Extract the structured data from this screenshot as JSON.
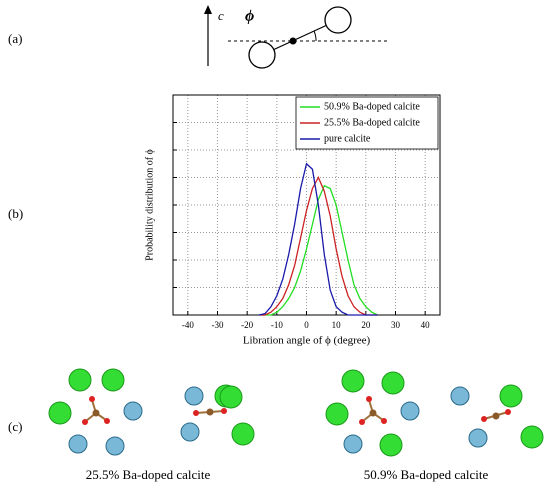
{
  "panel_labels": [
    "(a)",
    "(b)",
    "(c)"
  ],
  "diagram": {
    "axis_label": "c",
    "angle_label": "ϕ"
  },
  "chart_data": {
    "type": "line",
    "x_label": "Libration angle of ϕ (degree)",
    "y_label": "Probability distribution of ϕ",
    "x": [
      -16,
      -14,
      -12,
      -10,
      -8,
      -6,
      -4,
      -2,
      0,
      2,
      4,
      6,
      8,
      10,
      12,
      14,
      16,
      18,
      20,
      22,
      24
    ],
    "series": [
      {
        "name": "50.9% Ba-doped calcite",
        "color": "#22dd22",
        "values": [
          0,
          0,
          0,
          0.1,
          0.3,
          0.6,
          1.0,
          1.6,
          2.4,
          3.3,
          4.2,
          4.7,
          4.6,
          4.0,
          3.0,
          2.0,
          1.1,
          0.6,
          0.3,
          0.1,
          0
        ]
      },
      {
        "name": "25.5% Ba-doped calcite",
        "color": "#cc2222",
        "values": [
          0,
          0,
          0.1,
          0.3,
          0.6,
          1.1,
          1.8,
          2.8,
          3.8,
          4.6,
          5.0,
          4.5,
          3.6,
          2.4,
          1.4,
          0.7,
          0.3,
          0.1,
          0,
          0,
          0
        ]
      },
      {
        "name": "pure calcite",
        "color": "#1a1aaa",
        "values": [
          0,
          0.05,
          0.3,
          0.7,
          1.3,
          2.2,
          3.3,
          4.6,
          5.5,
          5.3,
          4.0,
          2.2,
          0.9,
          0.3,
          0.1,
          0,
          0,
          0,
          0,
          0,
          0
        ]
      }
    ],
    "xlim": [
      -45,
      45
    ],
    "xticks": [
      -40,
      -30,
      -20,
      -10,
      0,
      10,
      20,
      30,
      40
    ],
    "ylim": [
      0,
      8
    ],
    "yticks": [
      1,
      2,
      3,
      4,
      5,
      6,
      7
    ],
    "grid": true,
    "legend": "upper right"
  },
  "captions": [
    "25.5% Ba-doped calcite",
    "50.9% Ba-doped calcite"
  ]
}
